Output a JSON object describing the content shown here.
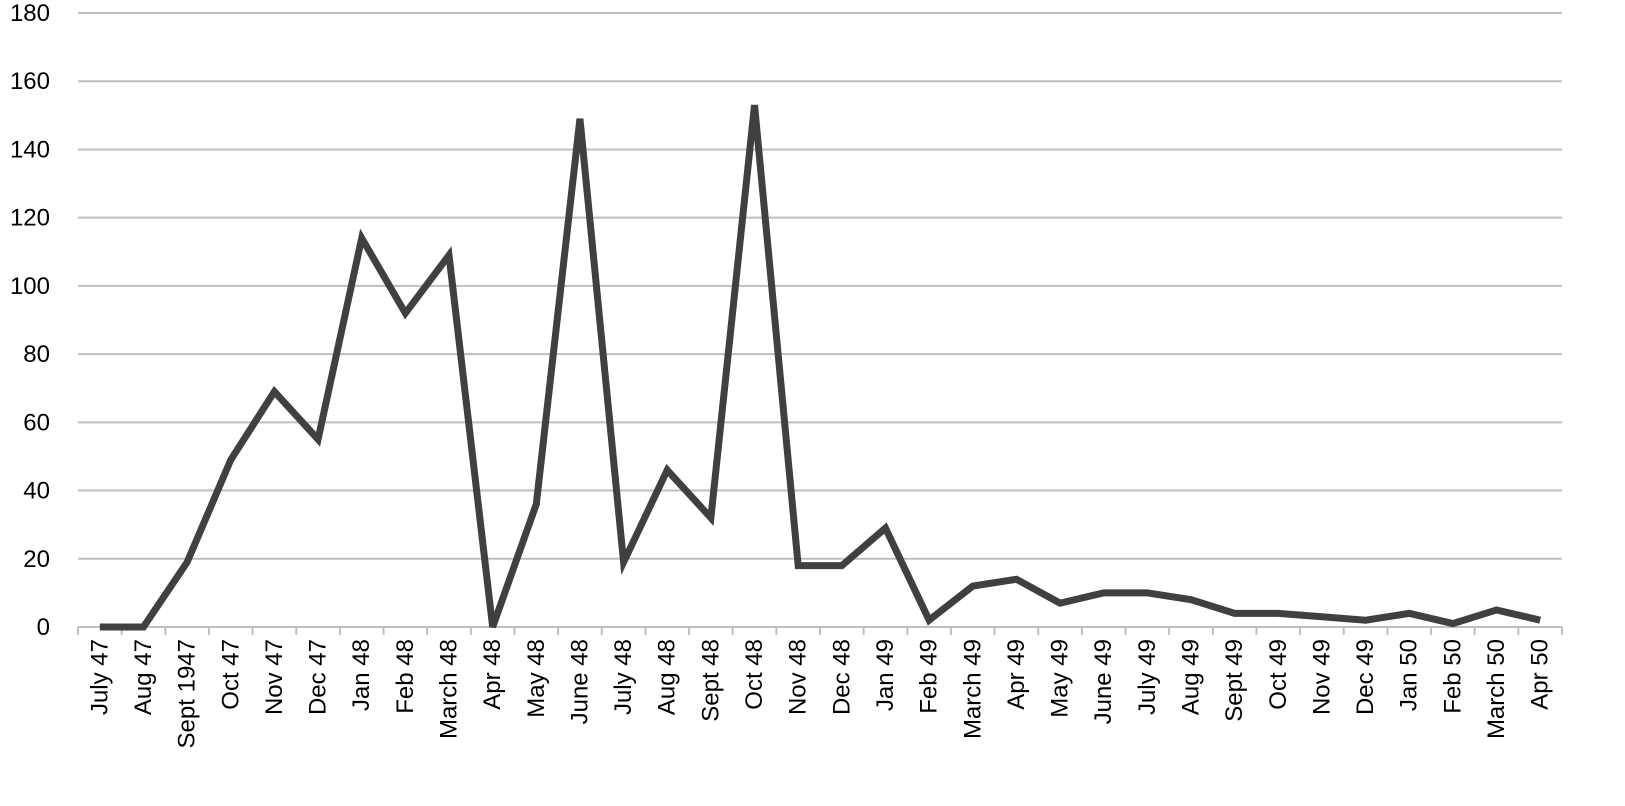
{
  "chart_data": {
    "type": "line",
    "title": "",
    "xlabel": "",
    "ylabel": "",
    "ylim": [
      0,
      180
    ],
    "yticks": [
      0,
      20,
      40,
      60,
      80,
      100,
      120,
      140,
      160,
      180
    ],
    "grid": true,
    "legend": "none",
    "categories": [
      "July 47",
      "Aug 47",
      "Sept 1947",
      "Oct 47",
      "Nov 47",
      "Dec 47",
      "Jan 48",
      "Feb 48",
      "March 48",
      "Apr 48",
      "May 48",
      "June 48",
      "July 48",
      "Aug 48",
      "Sept 48",
      "Oct 48",
      "Nov 48",
      "Dec 48",
      "Jan 49",
      "Feb 49",
      "March 49",
      "Apr 49",
      "May 49",
      "June 49",
      "July 49",
      "Aug 49",
      "Sept 49",
      "Oct 49",
      "Nov 49",
      "Dec 49",
      "Jan 50",
      "Feb 50",
      "March 50",
      "Apr 50"
    ],
    "series": [
      {
        "color": "#404040",
        "values": [
          0,
          0,
          19,
          49,
          69,
          55,
          114,
          92,
          109,
          0,
          36,
          149,
          19,
          46,
          32,
          153,
          18,
          18,
          29,
          2,
          12,
          14,
          7,
          10,
          10,
          8,
          4,
          4,
          3,
          2,
          4,
          1,
          5,
          2
        ]
      }
    ]
  }
}
